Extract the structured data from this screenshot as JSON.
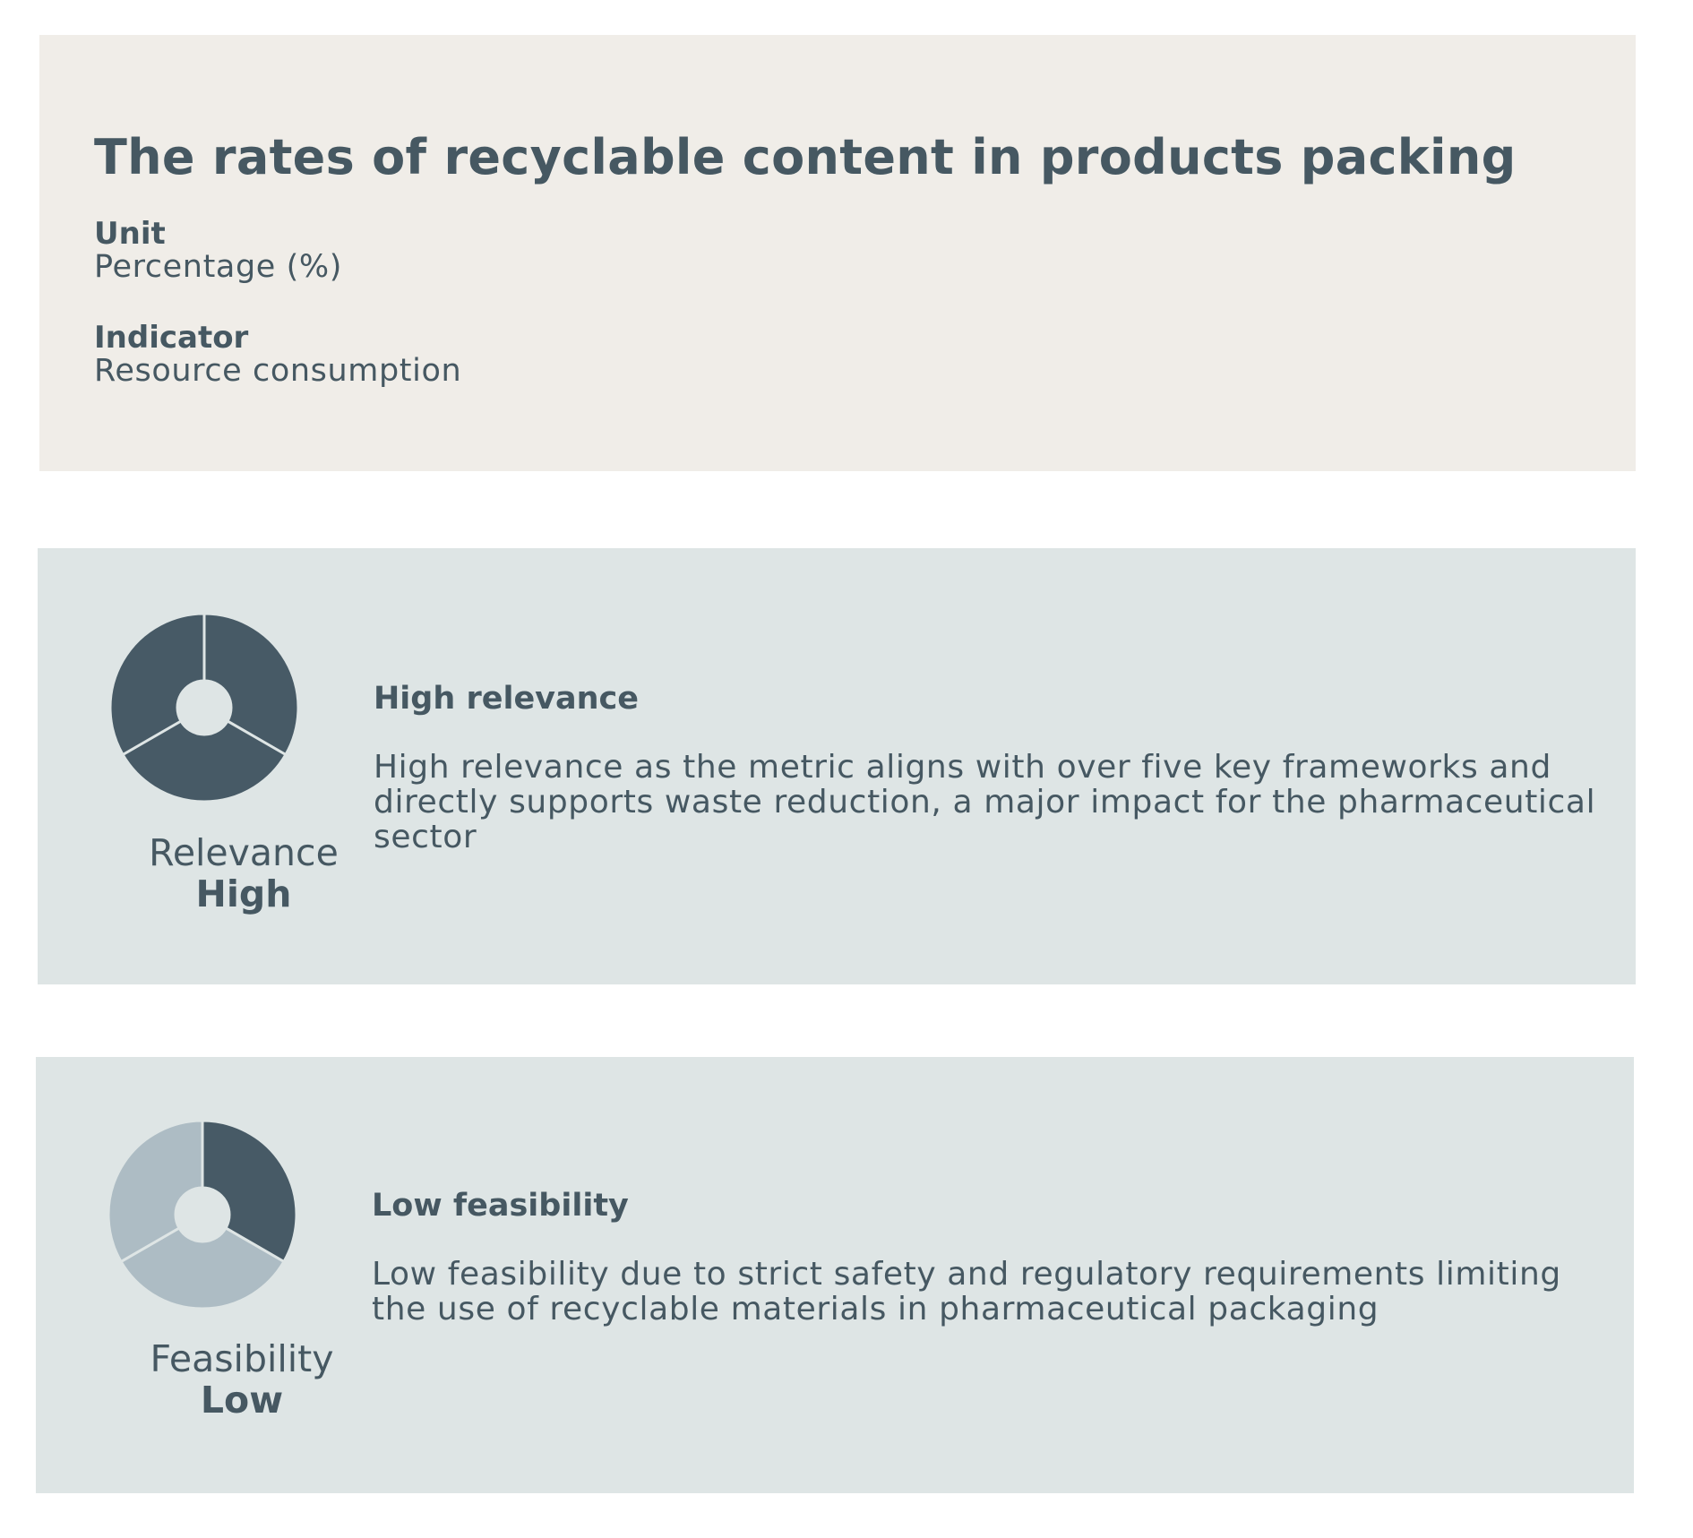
{
  "metric": {
    "title": "The rates of recyclable content in products packing",
    "unit_label": "Unit",
    "unit_value": "Percentage (%)",
    "indicator_label": "Indicator",
    "indicator_value": "Resource consumption"
  },
  "relevance": {
    "label": "Relevance",
    "value": "High",
    "segments_filled": 3,
    "segments_total": 3,
    "heading": "High relevance",
    "description": "High relevance as the metric aligns with over five key frameworks and directly supports waste reduction, a major impact for the pharmaceutical sector"
  },
  "feasibility": {
    "label": "Feasibility",
    "value": "Low",
    "segments_filled": 1,
    "segments_total": 3,
    "heading": "Low feasibility",
    "description": "Low feasibility due to strict safety and regulatory requirements limiting the use of recyclable materials in pharmaceutical packaging"
  },
  "colors": {
    "text": "#465862",
    "info_card_bg": "#f0ede8",
    "rating_card_bg": "#dee5e5",
    "segment_filled": "#475a66",
    "segment_empty": "#adbcc4"
  }
}
